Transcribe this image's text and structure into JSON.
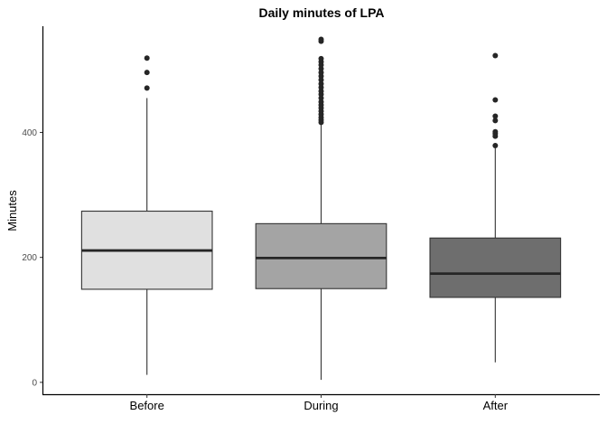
{
  "chart_data": {
    "type": "box",
    "title": "Daily minutes of LPA",
    "xlabel": "",
    "ylabel": "Minutes",
    "categories": [
      "Before",
      "During",
      "After"
    ],
    "y_ticks": [
      0,
      200,
      400
    ],
    "ylim": [
      -19,
      570
    ],
    "grid": false,
    "legend": "none",
    "boxes": [
      {
        "category": "Before",
        "fill": "#e0e0e0",
        "whisker_low": 12,
        "q1": 149,
        "median": 211,
        "q3": 274,
        "whisker_high": 455,
        "outliers": [
          471,
          496,
          519
        ]
      },
      {
        "category": "During",
        "fill": "#a4a4a4",
        "whisker_low": 4,
        "q1": 150,
        "median": 199,
        "q3": 254,
        "whisker_high": 414,
        "outliers": [
          416,
          420,
          424,
          429,
          434,
          439,
          444,
          449,
          455,
          461,
          466,
          472,
          478,
          484,
          490,
          496,
          502,
          508,
          513,
          518,
          546,
          549
        ]
      },
      {
        "category": "After",
        "fill": "#6e6e6e",
        "whisker_low": 32,
        "q1": 136,
        "median": 174,
        "q3": 231,
        "whisker_high": 378,
        "outliers": [
          379,
          394,
          398,
          401,
          419,
          426,
          452,
          523
        ]
      }
    ]
  }
}
